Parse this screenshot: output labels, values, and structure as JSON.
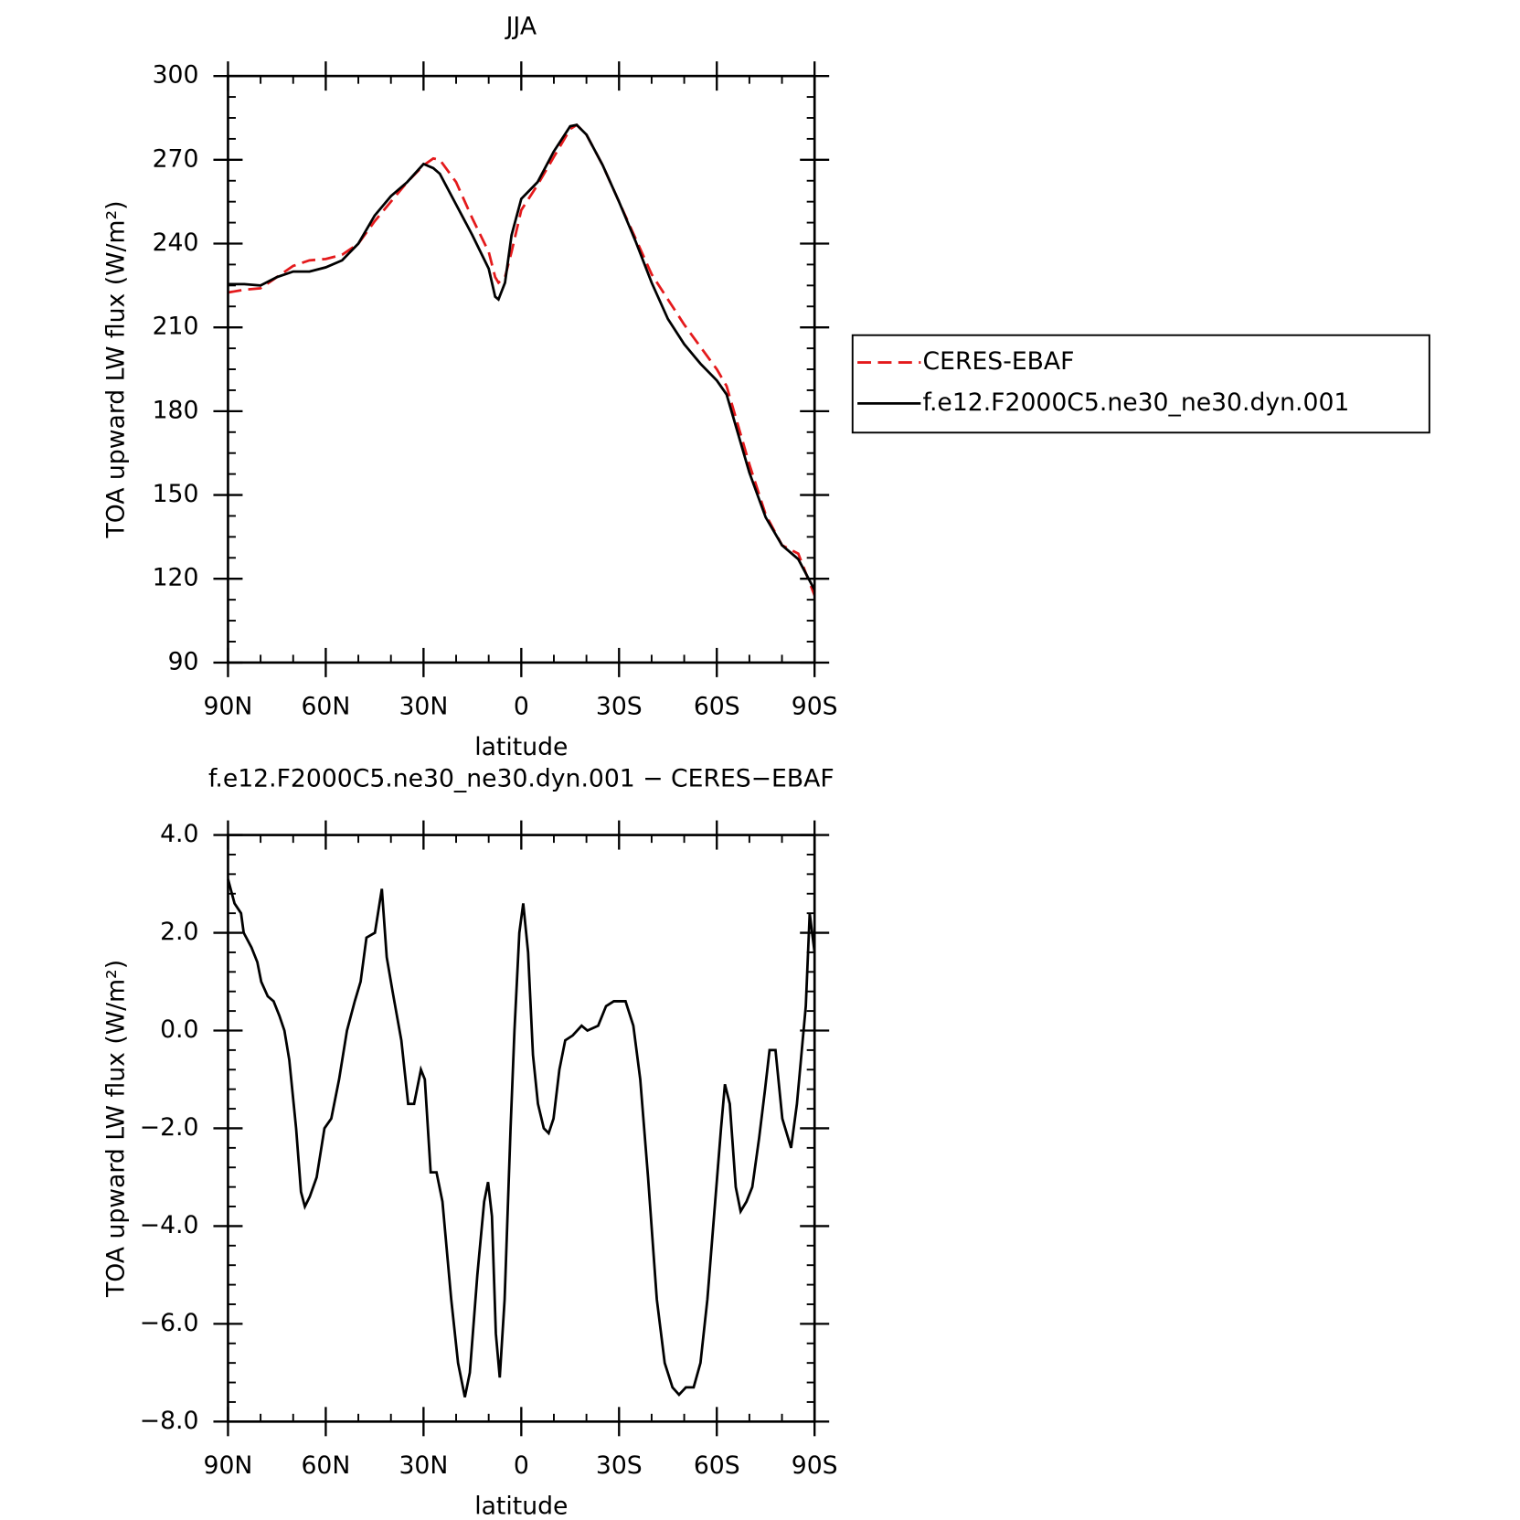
{
  "chart_data": [
    {
      "type": "line",
      "title": "JJA",
      "xlabel": "latitude",
      "ylabel": "TOA upward LW flux (W/m²)",
      "x": [
        90,
        85,
        80,
        75,
        70,
        65,
        60,
        55,
        50,
        45,
        40,
        35,
        30,
        27,
        25,
        20,
        15,
        10,
        8,
        7,
        5,
        3,
        0,
        -5,
        -10,
        -15,
        -17,
        -20,
        -25,
        -30,
        -35,
        -40,
        -45,
        -50,
        -55,
        -60,
        -63,
        -65,
        -70,
        -75,
        -80,
        -85,
        -90
      ],
      "series": [
        {
          "name": "CERES-EBAF",
          "color": "#e41a1c",
          "linestyle": "dashed",
          "values": [
            222.5,
            223.5,
            224,
            228,
            232,
            234,
            234.5,
            236,
            240,
            248,
            255,
            262,
            268,
            270.5,
            270,
            262,
            249,
            237,
            228,
            226,
            228,
            237,
            252,
            261,
            271,
            281,
            282.5,
            279,
            268,
            255,
            242,
            229,
            220,
            211,
            203,
            195,
            189,
            181,
            161,
            143,
            132,
            129,
            114
          ]
        },
        {
          "name": "f.e12.F2000C5.ne30_ne30.dyn.001",
          "color": "#000000",
          "linestyle": "solid",
          "values": [
            225.5,
            225.5,
            225,
            228,
            230,
            230,
            231.5,
            234,
            240,
            250,
            257,
            262,
            268.5,
            267,
            265,
            254,
            243,
            231,
            221,
            220,
            226,
            243,
            256,
            262,
            273,
            282,
            282.5,
            279,
            268,
            255,
            241,
            226,
            213,
            204,
            197,
            191,
            186,
            178,
            158,
            142,
            132,
            127,
            116
          ]
        }
      ],
      "xlim": [
        90,
        -90
      ],
      "xticks": [
        {
          "value": 90,
          "label": "90N"
        },
        {
          "value": 60,
          "label": "60N"
        },
        {
          "value": 30,
          "label": "30N"
        },
        0,
        {
          "value": -30,
          "label": "30S"
        },
        {
          "value": -60,
          "label": "60S"
        },
        {
          "value": -90,
          "label": "90S"
        }
      ],
      "ylim": [
        90,
        300
      ],
      "yticks": [
        90,
        120,
        150,
        180,
        210,
        240,
        270,
        300
      ],
      "grid": false,
      "legend": "right"
    },
    {
      "type": "line",
      "title": "f.e12.F2000C5.ne30_ne30.dyn.001 − CERES−EBAF",
      "xlabel": "latitude",
      "ylabel": "TOA upward LW flux (W/m²)",
      "x": [
        90,
        88,
        86,
        85.2,
        82.8,
        81,
        79.8,
        77.8,
        76,
        74.2,
        72.7,
        71.2,
        69.1,
        67.6,
        66.4,
        64.9,
        62.8,
        60.4,
        58.3,
        55.9,
        53.5,
        51.1,
        49.3,
        47.5,
        44.9,
        42.8,
        41.3,
        39.5,
        36.8,
        34.7,
        32.9,
        30.8,
        29.6,
        27.8,
        26,
        24.2,
        21.5,
        19.4,
        17.3,
        15.8,
        13.5,
        11.4,
        10.2,
        9,
        7.8,
        6.6,
        5.1,
        3.3,
        2.1,
        0.6,
        -0.6,
        -2.1,
        -3.6,
        -5.1,
        -6.9,
        -8.4,
        -9.9,
        -11.7,
        -13.5,
        -15.8,
        -18.5,
        -20.3,
        -23.6,
        -26,
        -28.4,
        -30.2,
        -32,
        -34.4,
        -36.5,
        -38.9,
        -41.6,
        -44,
        -46.4,
        -48.4,
        -50.5,
        -52.9,
        -55,
        -57.1,
        -59.5,
        -61.3,
        -62.5,
        -64,
        -65.8,
        -67.3,
        -69.1,
        -70.9,
        -73,
        -74.8,
        -76.2,
        -78,
        -80.1,
        -82.8,
        -84.6,
        -87.3,
        -88.5,
        -90
      ],
      "series": [
        {
          "color": "#000000",
          "linestyle": "solid",
          "values": [
            3.1,
            2.6,
            2.4,
            2.0,
            1.7,
            1.4,
            1.0,
            0.7,
            0.6,
            0.3,
            0.0,
            -0.6,
            -2.0,
            -3.3,
            -3.6,
            -3.4,
            -3.0,
            -2.0,
            -1.8,
            -1.0,
            0.0,
            0.6,
            1.0,
            1.9,
            2.0,
            2.9,
            1.5,
            0.8,
            -0.2,
            -1.5,
            -1.5,
            -0.8,
            -1.0,
            -2.9,
            -2.9,
            -3.5,
            -5.5,
            -6.8,
            -7.5,
            -7.0,
            -5.0,
            -3.5,
            -3.1,
            -3.8,
            -6.2,
            -7.1,
            -5.5,
            -2.0,
            0.0,
            2.0,
            2.6,
            1.6,
            -0.5,
            -1.5,
            -2.0,
            -2.1,
            -1.8,
            -0.8,
            -0.2,
            -0.1,
            0.1,
            0.0,
            0.1,
            0.5,
            0.6,
            0.6,
            0.6,
            0.1,
            -1.0,
            -3.0,
            -5.5,
            -6.8,
            -7.3,
            -7.45,
            -7.3,
            -7.3,
            -6.8,
            -5.5,
            -3.5,
            -2.0,
            -1.1,
            -1.5,
            -3.2,
            -3.7,
            -3.5,
            -3.2,
            -2.2,
            -1.2,
            -0.4,
            -0.4,
            -1.8,
            -2.4,
            -1.5,
            0.5,
            2.4,
            1.6
          ]
        }
      ],
      "xlim": [
        90,
        -90
      ],
      "xticks": [
        {
          "value": 90,
          "label": "90N"
        },
        {
          "value": 60,
          "label": "60N"
        },
        {
          "value": 30,
          "label": "30N"
        },
        0,
        {
          "value": -30,
          "label": "30S"
        },
        {
          "value": -60,
          "label": "60S"
        },
        {
          "value": -90,
          "label": "90S"
        }
      ],
      "ylim": [
        -8,
        4
      ],
      "yticks": [
        {
          "value": -8,
          "label": "−8.0"
        },
        {
          "value": -6,
          "label": "−6.0"
        },
        {
          "value": -4,
          "label": "−4.0"
        },
        {
          "value": -2,
          "label": "−2.0"
        },
        {
          "value": 0,
          "label": "0.0"
        },
        {
          "value": 2,
          "label": "2.0"
        },
        {
          "value": 4,
          "label": "4.0"
        }
      ],
      "grid": false
    }
  ]
}
